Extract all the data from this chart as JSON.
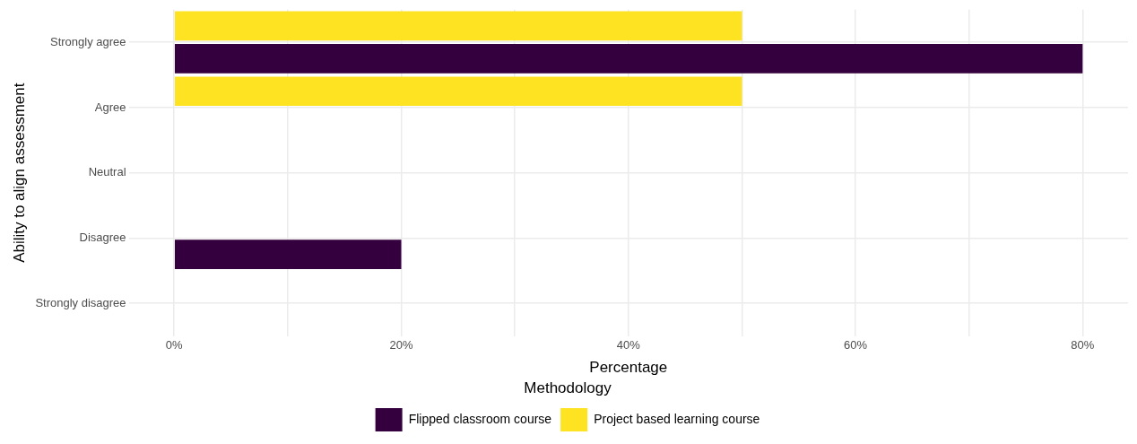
{
  "chart_data": {
    "type": "bar",
    "orientation": "horizontal",
    "xlabel": "Percentage",
    "ylabel": "Ability to align assessment",
    "legend_title": "Methodology",
    "legend": "bottom",
    "grid": true,
    "categories": [
      "Strongly agree",
      "Agree",
      "Neutral",
      "Disagree",
      "Strongly disagree"
    ],
    "series": [
      {
        "name": "Flipped classroom course",
        "color": "#35003e",
        "values": [
          80,
          0,
          0,
          20,
          0
        ]
      },
      {
        "name": "Project based learning course",
        "color": "#fde321",
        "values": [
          50,
          50,
          0,
          0,
          0
        ]
      }
    ],
    "xlim": [
      -4,
      84
    ],
    "xticks": [
      {
        "value": 0,
        "label": "0%"
      },
      {
        "value": 10,
        "label": null
      },
      {
        "value": 20,
        "label": "20%"
      },
      {
        "value": 30,
        "label": null
      },
      {
        "value": 40,
        "label": "40%"
      },
      {
        "value": 50,
        "label": null
      },
      {
        "value": 60,
        "label": "60%"
      },
      {
        "value": 70,
        "label": null
      },
      {
        "value": 80,
        "label": "80%"
      }
    ]
  }
}
